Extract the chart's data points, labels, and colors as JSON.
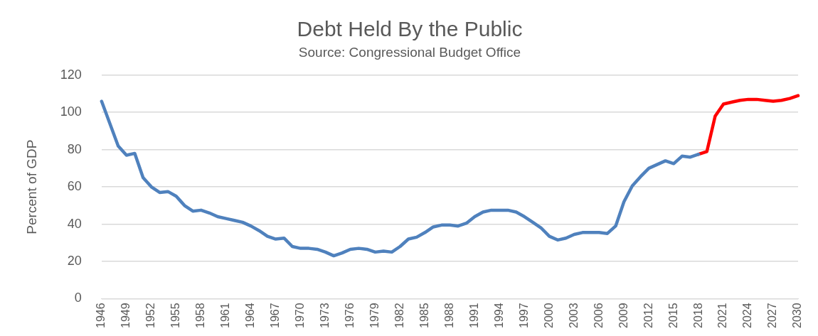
{
  "chart_data": {
    "type": "line",
    "title": "Debt Held By the Public",
    "subtitle": "Source: Congressional Budget Office",
    "ylabel": "Percent of GDP",
    "xlim": [
      1946,
      2030
    ],
    "xticks": [
      1946,
      1949,
      1952,
      1955,
      1958,
      1961,
      1964,
      1967,
      1970,
      1973,
      1976,
      1979,
      1982,
      1985,
      1988,
      1991,
      1994,
      1997,
      2000,
      2003,
      2006,
      2009,
      2012,
      2015,
      2018,
      2021,
      2024,
      2027,
      2030
    ],
    "ylim": [
      0,
      120
    ],
    "yticks": [
      0,
      20,
      40,
      60,
      80,
      100,
      120
    ],
    "grid": "y",
    "legend": false,
    "marker": "none",
    "line_style": "solid",
    "series": [
      {
        "color": "#4f81bd",
        "x": [
          1946,
          1947,
          1948,
          1949,
          1950,
          1951,
          1952,
          1953,
          1954,
          1955,
          1956,
          1957,
          1958,
          1959,
          1960,
          1961,
          1962,
          1963,
          1964,
          1965,
          1966,
          1967,
          1968,
          1969,
          1970,
          1971,
          1972,
          1973,
          1974,
          1975,
          1976,
          1977,
          1978,
          1979,
          1980,
          1981,
          1982,
          1983,
          1984,
          1985,
          1986,
          1987,
          1988,
          1989,
          1990,
          1991,
          1992,
          1993,
          1994,
          1995,
          1996,
          1997,
          1998,
          1999,
          2000,
          2001,
          2002,
          2003,
          2004,
          2005,
          2006,
          2007,
          2008,
          2009,
          2010,
          2011,
          2012,
          2013,
          2014,
          2015,
          2016,
          2017,
          2018
        ],
        "values": [
          106,
          94,
          82,
          77,
          78,
          65,
          60,
          57,
          57.5,
          55,
          50,
          47,
          47.5,
          46,
          44,
          43,
          42,
          41,
          39,
          36.5,
          33.5,
          32,
          32.5,
          28,
          27,
          27,
          26.5,
          25,
          23,
          24.5,
          26.5,
          27,
          26.5,
          25,
          25.5,
          25,
          28,
          32,
          33,
          35.5,
          38.5,
          39.5,
          39.5,
          39,
          40.5,
          44,
          46.5,
          47.5,
          47.5,
          47.5,
          46.5,
          44,
          41,
          38,
          33.5,
          31.5,
          32.5,
          34.5,
          35.5,
          35.5,
          35.5,
          35,
          39,
          52,
          60.5,
          65.5,
          70,
          72,
          74,
          72.5,
          76.5,
          76,
          77.5
        ]
      },
      {
        "color": "#ff0000",
        "x": [
          2018,
          2019,
          2020,
          2021,
          2022,
          2023,
          2024,
          2025,
          2026,
          2027,
          2028,
          2029,
          2030
        ],
        "values": [
          77.5,
          79,
          98,
          104.5,
          105.5,
          106.5,
          107,
          107,
          106.5,
          106,
          106.5,
          107.5,
          109
        ]
      }
    ]
  }
}
